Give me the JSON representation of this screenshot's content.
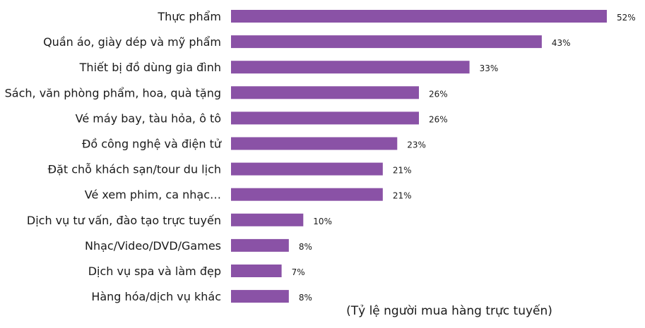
{
  "chart_data": {
    "type": "bar",
    "orientation": "horizontal",
    "categories": [
      "Thực phẩm",
      "Quần áo, giày dép và mỹ phẩm",
      "Thiết bị đồ dùng gia đình",
      "Sách,  văn phòng phẩm, hoa, quà tặng",
      "Vé máy bay, tàu hỏa, ô tô",
      "Đồ công nghệ và điện tử",
      "Đặt chỗ khách  sạn/tour du lịch",
      "Vé xem phim, ca nhạc…",
      "Dịch vụ tư vấn,  đào tạo trực tuyến",
      "Nhạc/Video/DVD/Games",
      "Dịch vụ spa và làm đẹp",
      "Hàng hóa/dịch  vụ khác"
    ],
    "values": [
      52,
      43,
      33,
      26,
      26,
      23,
      21,
      21,
      10,
      8,
      7,
      8
    ],
    "value_labels": [
      "52%",
      "43%",
      "33%",
      "26%",
      "26%",
      "23%",
      "21%",
      "21%",
      "10%",
      "8%",
      "7%",
      "8%"
    ],
    "unit": "%",
    "xlabel": "(Tỷ lệ người mua hàng trực tuyến)",
    "bar_color": "#8a52a6",
    "grid": false,
    "legend": "none"
  }
}
